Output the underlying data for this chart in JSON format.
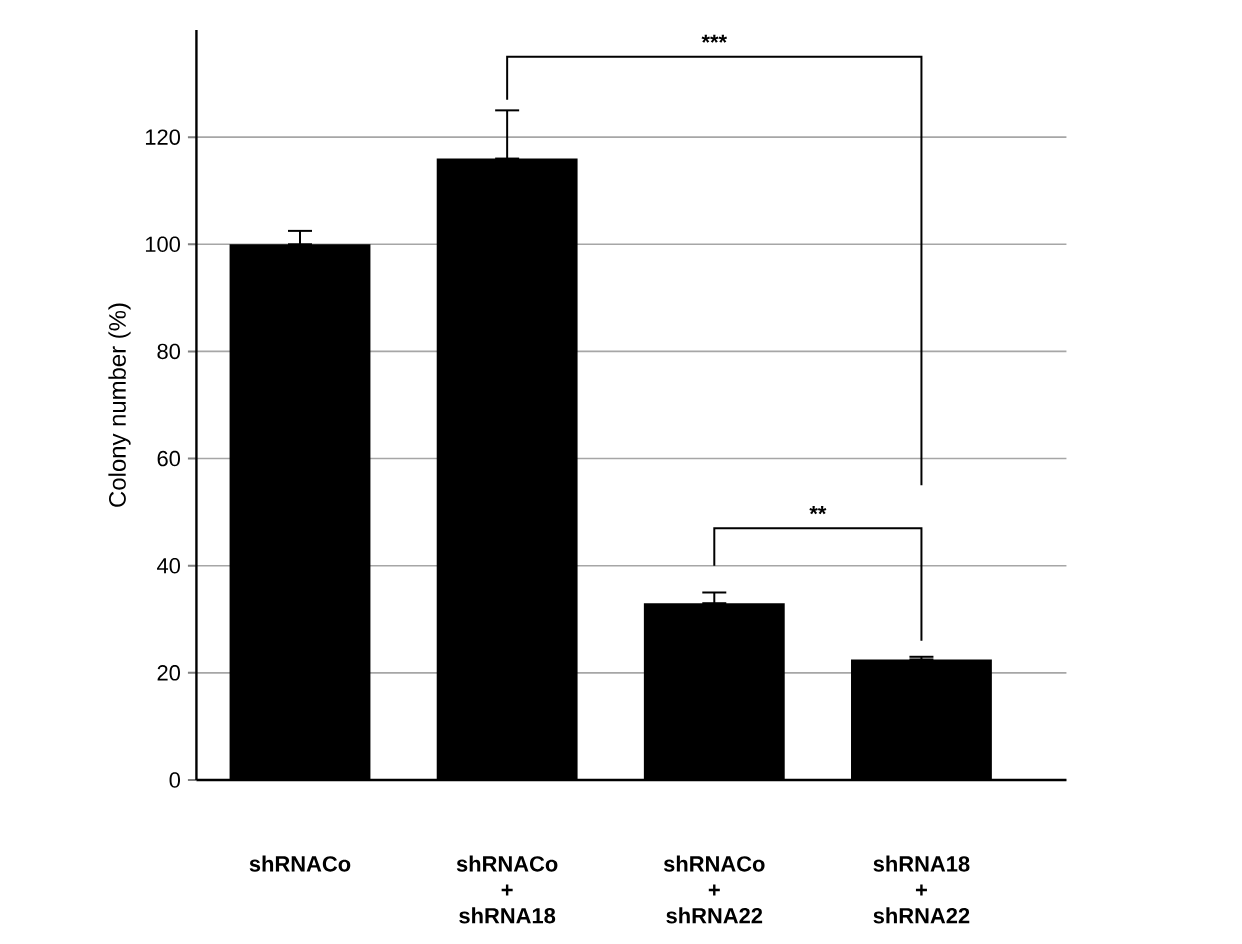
{
  "chart_data": {
    "type": "bar",
    "ylabel": "Colony number (%)",
    "categories": [
      "shRNACo",
      "shRNACo + shRNA18",
      "shRNACo + shRNA22",
      "shRNA18 + shRNA22"
    ],
    "values": [
      100,
      116,
      33,
      22.5
    ],
    "errors": [
      [
        100,
        102.5
      ],
      [
        116,
        125
      ],
      [
        33,
        35
      ],
      [
        22.5,
        23
      ]
    ],
    "color": "#000000",
    "ylim": [
      0,
      140
    ],
    "yticks": [
      0,
      20,
      40,
      60,
      80,
      100,
      120
    ],
    "grid": "y",
    "annotations": [
      "***",
      "**"
    ]
  }
}
